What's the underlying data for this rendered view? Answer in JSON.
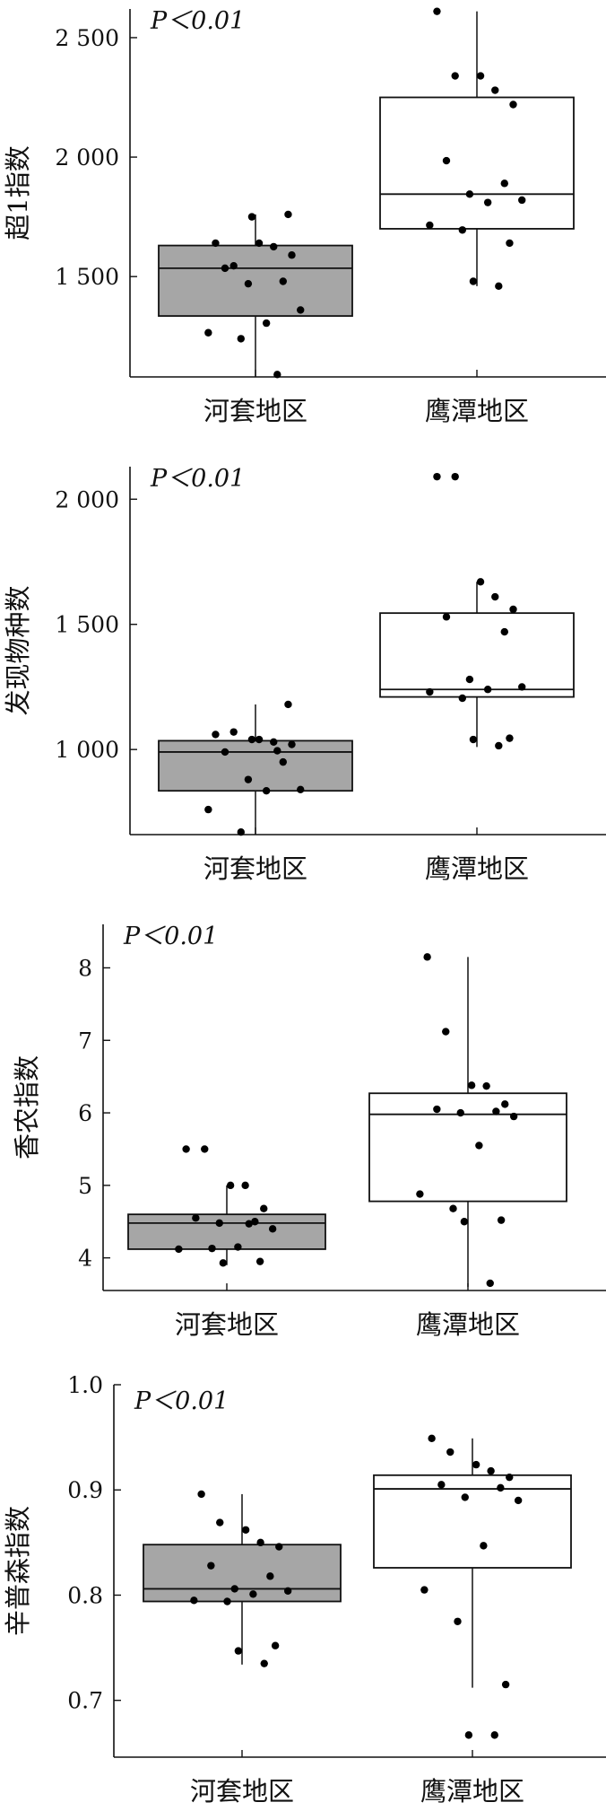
{
  "colors": {
    "axis": "#111111",
    "box_hetao": "#a6a6a6",
    "box_yingtan": "#ffffff",
    "point": "#000000"
  },
  "chart_data": [
    {
      "type": "box",
      "ylabel": "超1指数",
      "annotation": "P＜0.01",
      "ylim": [
        1080,
        2620
      ],
      "yticks": [
        1500,
        2000,
        2500
      ],
      "ytick_labels": [
        "1 500",
        "2 000",
        "2 500"
      ],
      "categories": [
        "河套地区",
        "鹰潭地区"
      ],
      "series": [
        {
          "group": "河套地区",
          "fill": "#a6a6a6",
          "q1": 1335,
          "median": 1535,
          "q3": 1630,
          "whisker_low": 1080,
          "whisker_high": 1760,
          "points": [
            1640,
            1545,
            1640,
            1625,
            1590,
            1535,
            1480,
            1470,
            1360,
            1305,
            1265,
            1240,
            1760,
            1750,
            1090
          ]
        },
        {
          "group": "鹰潭地区",
          "fill": "#ffffff",
          "q1": 1700,
          "median": 1845,
          "q3": 2250,
          "whisker_low": 1460,
          "whisker_high": 2610,
          "points": [
            2610,
            2340,
            2340,
            2280,
            2220,
            1985,
            1890,
            1845,
            1820,
            1810,
            1715,
            1695,
            1640,
            1480,
            1460
          ]
        }
      ]
    },
    {
      "type": "box",
      "ylabel": "发现物种数",
      "annotation": "P＜0.01",
      "ylim": [
        660,
        2130
      ],
      "yticks": [
        1000,
        1500,
        2000
      ],
      "ytick_labels": [
        "1 000",
        "1 500",
        "2 000"
      ],
      "categories": [
        "河套地区",
        "鹰潭地区"
      ],
      "series": [
        {
          "group": "河套地区",
          "fill": "#a6a6a6",
          "q1": 835,
          "median": 990,
          "q3": 1035,
          "whisker_low": 660,
          "whisker_high": 1180,
          "points": [
            1060,
            1070,
            1040,
            1030,
            1020,
            990,
            950,
            880,
            840,
            835,
            760,
            670,
            1180,
            1040,
            995
          ]
        },
        {
          "group": "鹰潭地区",
          "fill": "#ffffff",
          "q1": 1210,
          "median": 1240,
          "q3": 1545,
          "whisker_low": 1010,
          "whisker_high": 1670,
          "points": [
            2090,
            2090,
            1670,
            1610,
            1560,
            1530,
            1470,
            1280,
            1250,
            1240,
            1230,
            1205,
            1045,
            1040,
            1015
          ]
        }
      ]
    },
    {
      "type": "box",
      "ylabel": "香农指数",
      "annotation": "P＜0.01",
      "ylim": [
        3.55,
        8.6
      ],
      "yticks": [
        4,
        5,
        6,
        7,
        8
      ],
      "ytick_labels": [
        "4",
        "5",
        "6",
        "7",
        "8"
      ],
      "categories": [
        "河套地区",
        "鹰潭地区"
      ],
      "series": [
        {
          "group": "河套地区",
          "fill": "#a6a6a6",
          "q1": 4.12,
          "median": 4.48,
          "q3": 4.6,
          "whisker_low": 3.9,
          "whisker_high": 5.0,
          "points": [
            5.5,
            5.5,
            5.0,
            5.0,
            4.68,
            4.55,
            4.5,
            4.48,
            4.4,
            4.15,
            4.12,
            4.13,
            3.95,
            3.93,
            4.47
          ]
        },
        {
          "group": "鹰潭地区",
          "fill": "#ffffff",
          "q1": 4.78,
          "median": 5.98,
          "q3": 6.27,
          "whisker_low": 3.6,
          "whisker_high": 8.15,
          "points": [
            8.15,
            7.12,
            6.38,
            6.37,
            6.12,
            6.05,
            6.02,
            6.0,
            5.95,
            5.55,
            4.88,
            4.68,
            4.52,
            4.5,
            3.65
          ]
        }
      ]
    },
    {
      "type": "box",
      "ylabel": "辛普森指数",
      "annotation": "P＜0.01",
      "ylim": [
        0.646,
        1.0
      ],
      "yticks": [
        0.7,
        0.8,
        0.9,
        1.0
      ],
      "ytick_labels": [
        "0.7",
        "0.8",
        "0.9",
        "1.0"
      ],
      "categories": [
        "河套地区",
        "鹰潭地区"
      ],
      "series": [
        {
          "group": "河套地区",
          "fill": "#a6a6a6",
          "q1": 0.794,
          "median": 0.806,
          "q3": 0.848,
          "whisker_low": 0.734,
          "whisker_high": 0.896,
          "points": [
            0.896,
            0.869,
            0.862,
            0.85,
            0.846,
            0.828,
            0.818,
            0.806,
            0.804,
            0.801,
            0.795,
            0.794,
            0.752,
            0.747,
            0.735
          ]
        },
        {
          "group": "鹰潭地区",
          "fill": "#ffffff",
          "q1": 0.826,
          "median": 0.901,
          "q3": 0.914,
          "whisker_low": 0.712,
          "whisker_high": 0.949,
          "points": [
            0.949,
            0.936,
            0.924,
            0.918,
            0.912,
            0.905,
            0.902,
            0.893,
            0.89,
            0.847,
            0.805,
            0.775,
            0.715,
            0.667,
            0.667
          ]
        }
      ]
    }
  ]
}
